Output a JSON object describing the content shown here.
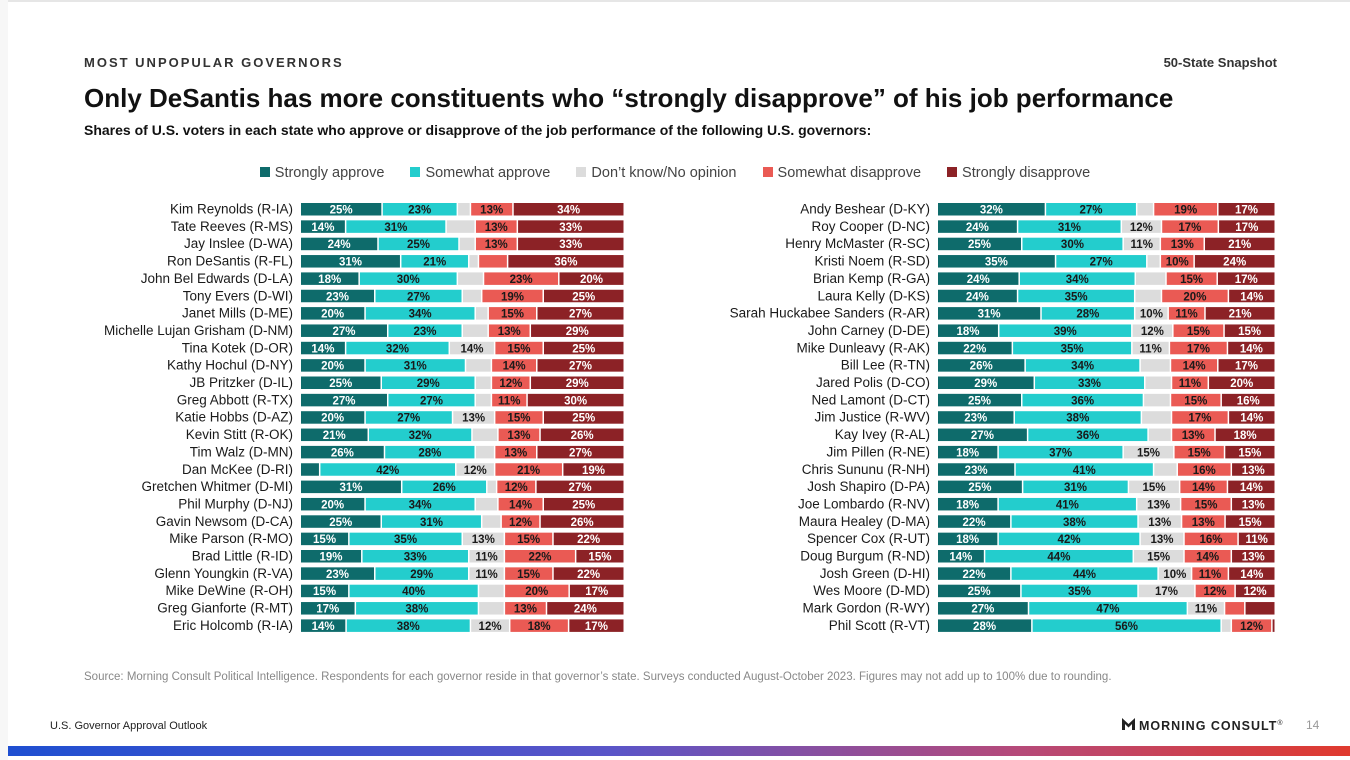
{
  "header": {
    "kicker": "MOST UNPOPULAR GOVERNORS",
    "snapshot": "50-State Snapshot",
    "title": "Only DeSantis has more constituents who “strongly disapprove” of his job performance",
    "subtitle": "Shares of U.S. voters in each state who approve or disapprove of the job performance of the following U.S. governors:"
  },
  "legend": [
    {
      "label": "Strongly approve",
      "color": "#0e6b6b"
    },
    {
      "label": "Somewhat approve",
      "color": "#23cdcd"
    },
    {
      "label": "Don’t know/No opinion",
      "color": "#dcdcdc"
    },
    {
      "label": "Somewhat disapprove",
      "color": "#ea5a54"
    },
    {
      "label": "Strongly disapprove",
      "color": "#8c2226"
    }
  ],
  "chart_data": [
    {
      "type": "bar",
      "orientation": "horizontal-stacked",
      "unit": "%",
      "series_names": [
        "Strongly approve",
        "Somewhat approve",
        "Don’t know/No opinion",
        "Somewhat disapprove",
        "Strongly disapprove"
      ],
      "rows": [
        {
          "label": "Kim Reynolds (R-IA)",
          "values": [
            25,
            23,
            4,
            13,
            34
          ]
        },
        {
          "label": "Tate Reeves (R-MS)",
          "values": [
            14,
            31,
            9,
            13,
            33
          ]
        },
        {
          "label": "Jay Inslee (D-WA)",
          "values": [
            24,
            25,
            5,
            13,
            33
          ]
        },
        {
          "label": "Ron DeSantis (R-FL)",
          "values": [
            31,
            21,
            3,
            9,
            36
          ]
        },
        {
          "label": "John Bel Edwards (D-LA)",
          "values": [
            18,
            30,
            8,
            23,
            20
          ]
        },
        {
          "label": "Tony Evers (D-WI)",
          "values": [
            23,
            27,
            6,
            19,
            25
          ]
        },
        {
          "label": "Janet Mills (D-ME)",
          "values": [
            20,
            34,
            4,
            15,
            27
          ]
        },
        {
          "label": "Michelle Lujan Grisham (D-NM)",
          "values": [
            27,
            23,
            8,
            13,
            29
          ]
        },
        {
          "label": "Tina Kotek (D-OR)",
          "values": [
            14,
            32,
            14,
            15,
            25
          ]
        },
        {
          "label": "Kathy Hochul (D-NY)",
          "values": [
            20,
            31,
            8,
            14,
            27
          ]
        },
        {
          "label": "JB Pritzker (D-IL)",
          "values": [
            25,
            29,
            5,
            12,
            29
          ]
        },
        {
          "label": "Greg Abbott (R-TX)",
          "values": [
            27,
            27,
            5,
            11,
            30
          ]
        },
        {
          "label": "Katie Hobbs (D-AZ)",
          "values": [
            20,
            27,
            13,
            15,
            25
          ]
        },
        {
          "label": "Kevin Stitt (R-OK)",
          "values": [
            21,
            32,
            8,
            13,
            26
          ]
        },
        {
          "label": "Tim Walz (D-MN)",
          "values": [
            26,
            28,
            6,
            13,
            27
          ]
        },
        {
          "label": "Dan McKee (D-RI)",
          "values": [
            6,
            42,
            12,
            21,
            19
          ]
        },
        {
          "label": "Gretchen Whitmer (D-MI)",
          "values": [
            31,
            26,
            3,
            12,
            27
          ]
        },
        {
          "label": "Phil Murphy (D-NJ)",
          "values": [
            20,
            34,
            7,
            14,
            25
          ]
        },
        {
          "label": "Gavin Newsom (D-CA)",
          "values": [
            25,
            31,
            6,
            12,
            26
          ]
        },
        {
          "label": "Mike Parson (R-MO)",
          "values": [
            15,
            35,
            13,
            15,
            22
          ]
        },
        {
          "label": "Brad Little (R-ID)",
          "values": [
            19,
            33,
            11,
            22,
            15
          ]
        },
        {
          "label": "Glenn Youngkin (R-VA)",
          "values": [
            23,
            29,
            11,
            15,
            22
          ]
        },
        {
          "label": "Mike DeWine (R-OH)",
          "values": [
            15,
            40,
            8,
            20,
            17
          ]
        },
        {
          "label": "Greg Gianforte (R-MT)",
          "values": [
            17,
            38,
            8,
            13,
            24
          ]
        },
        {
          "label": "Eric Holcomb (R-IA)",
          "values": [
            14,
            38,
            12,
            18,
            17
          ]
        }
      ]
    },
    {
      "type": "bar",
      "orientation": "horizontal-stacked",
      "unit": "%",
      "series_names": [
        "Strongly approve",
        "Somewhat approve",
        "Don’t know/No opinion",
        "Somewhat disapprove",
        "Strongly disapprove"
      ],
      "rows": [
        {
          "label": "Andy Beshear (D-KY)",
          "values": [
            32,
            27,
            5,
            19,
            17
          ]
        },
        {
          "label": "Roy Cooper (D-NC)",
          "values": [
            24,
            31,
            12,
            17,
            17
          ]
        },
        {
          "label": "Henry McMaster (R-SC)",
          "values": [
            25,
            30,
            11,
            13,
            21
          ]
        },
        {
          "label": "Kristi Noem (R-SD)",
          "values": [
            35,
            27,
            4,
            10,
            24
          ]
        },
        {
          "label": "Brian Kemp (R-GA)",
          "values": [
            24,
            34,
            9,
            15,
            17
          ]
        },
        {
          "label": "Laura Kelly (D-KS)",
          "values": [
            24,
            35,
            8,
            20,
            14
          ]
        },
        {
          "label": "Sarah Huckabee Sanders (R-AR)",
          "values": [
            31,
            28,
            10,
            11,
            21
          ]
        },
        {
          "label": "John Carney (D-DE)",
          "values": [
            18,
            39,
            12,
            15,
            15
          ]
        },
        {
          "label": "Mike Dunleavy (R-AK)",
          "values": [
            22,
            35,
            11,
            17,
            14
          ]
        },
        {
          "label": "Bill Lee (R-TN)",
          "values": [
            26,
            34,
            9,
            14,
            17
          ]
        },
        {
          "label": "Jared Polis (D-CO)",
          "values": [
            29,
            33,
            8,
            11,
            20
          ]
        },
        {
          "label": "Ned Lamont (D-CT)",
          "values": [
            25,
            36,
            8,
            15,
            16
          ]
        },
        {
          "label": "Jim Justice (R-WV)",
          "values": [
            23,
            38,
            9,
            17,
            14
          ]
        },
        {
          "label": "Kay Ivey (R-AL)",
          "values": [
            27,
            36,
            7,
            13,
            18
          ]
        },
        {
          "label": "Jim Pillen (R-NE)",
          "values": [
            18,
            37,
            15,
            15,
            15
          ]
        },
        {
          "label": "Chris Sununu (R-NH)",
          "values": [
            23,
            41,
            7,
            16,
            13
          ]
        },
        {
          "label": "Josh Shapiro (D-PA)",
          "values": [
            25,
            31,
            15,
            14,
            14
          ]
        },
        {
          "label": "Joe Lombardo (R-NV)",
          "values": [
            18,
            41,
            13,
            15,
            13
          ]
        },
        {
          "label": "Maura Healey (D-MA)",
          "values": [
            22,
            38,
            13,
            13,
            15
          ]
        },
        {
          "label": "Spencer Cox (R-UT)",
          "values": [
            18,
            42,
            13,
            16,
            11
          ]
        },
        {
          "label": "Doug Burgum (R-ND)",
          "values": [
            14,
            44,
            15,
            14,
            13
          ]
        },
        {
          "label": "Josh Green (D-HI)",
          "values": [
            22,
            44,
            10,
            11,
            14
          ]
        },
        {
          "label": "Wes Moore (D-MD)",
          "values": [
            25,
            35,
            17,
            12,
            12
          ]
        },
        {
          "label": "Mark Gordon (R-WY)",
          "values": [
            27,
            47,
            11,
            6,
            9
          ]
        },
        {
          "label": "Phil Scott (R-VT)",
          "values": [
            28,
            56,
            3,
            12,
            1
          ]
        }
      ]
    }
  ],
  "source": "Source: Morning Consult Political Intelligence. Respondents for each governor reside in that governor’s state. Surveys conducted August-October 2023. Figures may not add up to 100% due to rounding.",
  "footer": {
    "left": "U.S. Governor Approval Outlook",
    "brand": "MORNING CONSULT",
    "trademark": "®",
    "page": "14"
  }
}
